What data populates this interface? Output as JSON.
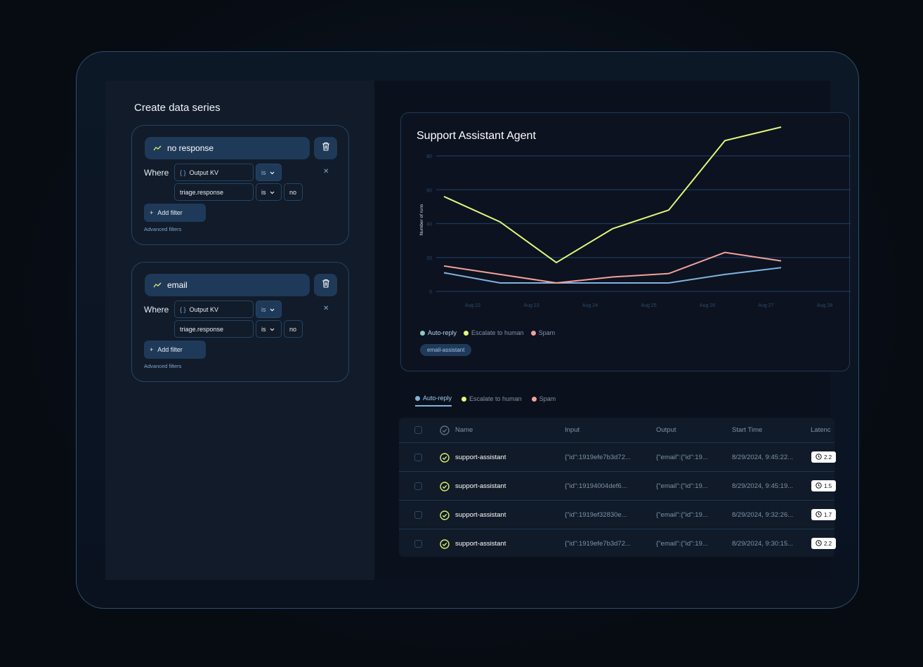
{
  "panel": {
    "title": "Create data series"
  },
  "series": [
    {
      "name": "no response",
      "where": "Where",
      "field1": "Output KV",
      "op1": "is",
      "field2": "triage.response",
      "op2": "is",
      "value": "no",
      "add_filter": "Add filter",
      "advanced": "Advanced filters"
    },
    {
      "name": "email",
      "where": "Where",
      "field1": "Output KV",
      "op1": "is",
      "field2": "triage.response",
      "op2": "is",
      "value": "no",
      "add_filter": "Add filter",
      "advanced": "Advanced filters"
    }
  ],
  "chart_data": {
    "type": "line",
    "title": "Support Assistant Agent",
    "ylabel": "Number of runs",
    "xlabel": "",
    "categories": [
      "Aug 22",
      "Aug 23",
      "Aug 24",
      "Aug 25",
      "Aug 26",
      "Aug 27",
      "Aug 28"
    ],
    "yticks": [
      "0",
      "20",
      "40",
      "60",
      "80"
    ],
    "ylim": [
      0,
      80
    ],
    "grid": true,
    "legend_placement": "bottom-left",
    "series": [
      {
        "name": "Auto-reply",
        "color": "#7fb3e0",
        "values": [
          11,
          5,
          5,
          5,
          5,
          10,
          14
        ]
      },
      {
        "name": "Escalate to human",
        "color": "#e4f77a",
        "values": [
          56,
          41,
          17,
          37,
          48,
          89,
          97
        ]
      },
      {
        "name": "Spam",
        "color": "#f2a19b",
        "values": [
          15,
          10,
          5,
          8.5,
          10.5,
          23,
          18
        ]
      }
    ],
    "tag": "email-assistant"
  },
  "tabs": [
    {
      "label": "Auto-reply",
      "color": "#7fb3e0",
      "active": true
    },
    {
      "label": "Escalate to human",
      "color": "#e4f77a"
    },
    {
      "label": "Spam",
      "color": "#f2a19b"
    }
  ],
  "table": {
    "headers": [
      "Name",
      "Input",
      "Output",
      "Start Time",
      "Latenc"
    ],
    "rows": [
      {
        "name": "support-assistant",
        "input": "{\"id\":1919efe7b3d72...",
        "output": "{\"email\":{\"id\":19...",
        "start": "8/29/2024, 9:45:22...",
        "latency": "2.2"
      },
      {
        "name": "support-assistant",
        "input": "{\"id\":19194004def6...",
        "output": "{\"email\":{\"id\":19...",
        "start": "8/29/2024, 9:45:19...",
        "latency": "1.5"
      },
      {
        "name": "support-assistant",
        "input": "{\"id\":1919ef32830e...",
        "output": "{\"email\":{\"id\":19...",
        "start": "8/29/2024, 9:32:26...",
        "latency": "1.7"
      },
      {
        "name": "support-assistant",
        "input": "{\"id\":1919efe7b3d72...",
        "output": "{\"email\":{\"id\":19...",
        "start": "8/29/2024, 9:30:15...",
        "latency": "2.2"
      }
    ]
  }
}
